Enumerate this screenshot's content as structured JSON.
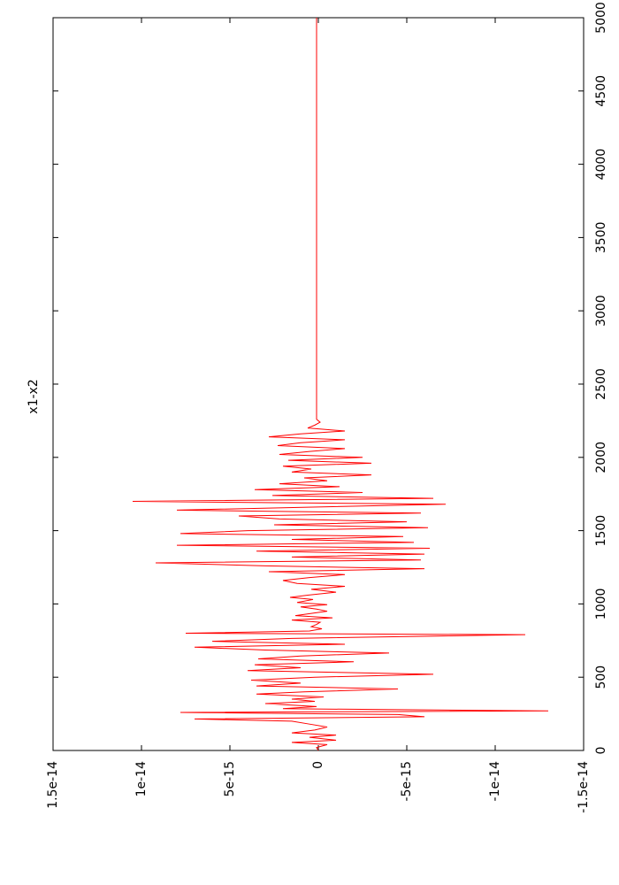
{
  "chart_data": {
    "type": "line",
    "orientation": "rotated-90-clockwise",
    "title": "x1-x2",
    "xlabel": "",
    "ylabel": "",
    "xlim": [
      0,
      5000
    ],
    "ylim": [
      -1.5e-14,
      1.5e-14
    ],
    "x_ticks": [
      0,
      500,
      1000,
      1500,
      2000,
      2500,
      3000,
      3500,
      4000,
      4500,
      5000
    ],
    "x_tick_labels": [
      "0",
      "500",
      "1000",
      "1500",
      "2000",
      "2500",
      "3000",
      "3500",
      "4000",
      "4500",
      "5000"
    ],
    "y_ticks": [
      1.5e-14,
      1e-14,
      5e-15,
      0,
      -5e-15,
      -1e-14,
      -1.5e-14
    ],
    "y_tick_labels": [
      "1.5e-14",
      "1e-14",
      "5e-15",
      "0",
      "-5e-15",
      "-1e-14",
      "-1.5e-14"
    ],
    "grid": false,
    "line_color": "#ff0000",
    "series": [
      {
        "x": [
          0,
          20,
          40,
          55,
          70,
          90,
          105,
          120,
          140,
          160,
          180,
          200,
          215,
          230,
          245,
          260,
          270,
          285,
          300,
          320,
          335,
          350,
          365,
          385,
          400,
          420,
          440,
          460,
          480,
          500,
          520,
          545,
          565,
          585,
          605,
          625,
          645,
          665,
          685,
          705,
          725,
          745,
          765,
          790,
          800,
          815,
          830,
          845,
          860,
          875,
          890,
          905,
          920,
          935,
          950,
          965,
          980,
          995,
          1010,
          1030,
          1045,
          1060,
          1080,
          1100,
          1120,
          1140,
          1160,
          1180,
          1200,
          1220,
          1240,
          1260,
          1280,
          1300,
          1320,
          1340,
          1360,
          1380,
          1400,
          1420,
          1440,
          1460,
          1480,
          1500,
          1520,
          1540,
          1560,
          1580,
          1600,
          1620,
          1640,
          1660,
          1680,
          1700,
          1720,
          1740,
          1760,
          1780,
          1800,
          1820,
          1840,
          1860,
          1880,
          1900,
          1920,
          1940,
          1960,
          1980,
          2000,
          2020,
          2040,
          2060,
          2080,
          2100,
          2120,
          2140,
          2160,
          2180,
          2200,
          2220,
          2240,
          2260,
          2280,
          2300,
          2500,
          3000,
          3500,
          4000,
          4500,
          5000
        ],
        "y": [
          0,
          1e-16,
          -5e-16,
          1.5e-15,
          -1e-15,
          5e-16,
          -1e-15,
          1.5e-15,
          2e-16,
          -5e-16,
          5e-16,
          1.5e-15,
          7e-15,
          -6e-15,
          -4.5e-15,
          7.8e-15,
          -1.3e-14,
          2e-15,
          1e-16,
          3e-15,
          2e-16,
          1.5e-15,
          -3e-16,
          3.5e-15,
          8e-16,
          -4.5e-15,
          3.5e-15,
          1e-15,
          3.8e-15,
          2e-16,
          -6.5e-15,
          4e-15,
          1e-15,
          3.6e-15,
          -2e-15,
          3.4e-15,
          1e-15,
          -4e-15,
          3e-15,
          7e-15,
          -1.5e-15,
          6e-15,
          1.5e-15,
          -1.17e-14,
          7.5e-15,
          5e-16,
          -2e-16,
          4e-16,
          1e-16,
          -1e-16,
          1.5e-15,
          -8e-16,
          1.3e-15,
          4e-16,
          -5e-16,
          1e-16,
          1e-15,
          -5e-16,
          1.2e-15,
          3e-16,
          1.6e-15,
          6e-16,
          -1e-15,
          4e-16,
          -1.5e-15,
          1.2e-15,
          2e-15,
          5e-16,
          -1.5e-15,
          2.8e-15,
          -6e-15,
          3e-15,
          9.2e-15,
          -5.8e-15,
          1.5e-15,
          -6e-15,
          3.5e-15,
          -6.3e-15,
          8e-15,
          -5.4e-15,
          1.5e-15,
          -4.8e-15,
          7.8e-15,
          4e-15,
          -6.2e-15,
          2.5e-15,
          -5e-15,
          2.2e-15,
          4.5e-15,
          -5.8e-15,
          8e-15,
          6e-16,
          -7.2e-15,
          1.05e-14,
          -6.5e-15,
          2.6e-15,
          -2.5e-15,
          3.6e-15,
          -1.2e-15,
          2.2e-15,
          -5e-16,
          8e-16,
          -3e-15,
          1.5e-15,
          4e-16,
          2e-15,
          -3e-15,
          1.7e-15,
          -2.5e-15,
          2.2e-15,
          5e-16,
          -1.5e-15,
          2.3e-15,
          1e-15,
          -1.5e-15,
          2.8e-15,
          1e-15,
          -1.5e-15,
          6e-16,
          2e-16,
          -1e-16,
          1e-16,
          1e-16,
          1e-16,
          1e-16,
          1e-16,
          1e-16,
          1e-16,
          1e-16,
          1e-16
        ]
      }
    ]
  }
}
